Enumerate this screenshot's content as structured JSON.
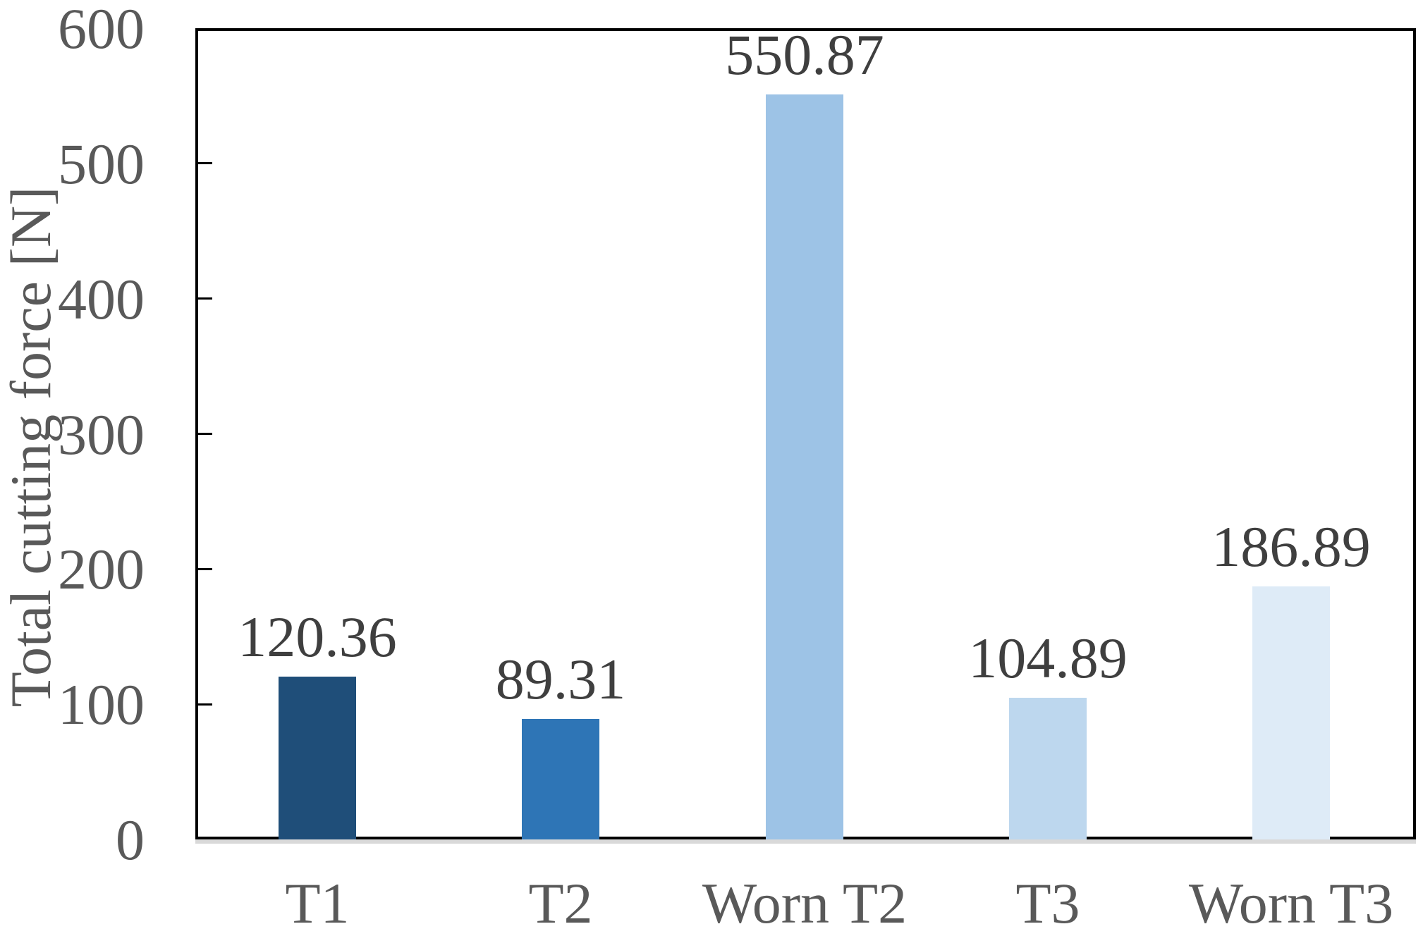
{
  "chart_data": {
    "type": "bar",
    "title": "",
    "xlabel": "",
    "ylabel": "Total cutting force [N]",
    "categories": [
      "T1",
      "T2",
      "Worn T2",
      "T3",
      "Worn T3"
    ],
    "values": [
      120.36,
      89.31,
      550.87,
      104.89,
      186.89
    ],
    "data_labels": [
      "120.36",
      "89.31",
      "550.87",
      "104.89",
      "186.89"
    ],
    "bar_colors": [
      "#1f4e79",
      "#2e75b6",
      "#9dc3e6",
      "#bdd7ee",
      "#deebf7"
    ],
    "ylim": [
      0,
      600
    ],
    "yticks": [
      0,
      100,
      200,
      300,
      400,
      500,
      600
    ],
    "ytick_labels": [
      "0",
      "100",
      "200",
      "300",
      "400",
      "500",
      "600"
    ],
    "grid": false,
    "legend": false,
    "colors": {
      "axis_text": "#595959",
      "value_label": "#3f3f3f",
      "axis_line": "#000000",
      "baseline_shadow": "#d9d9d9",
      "background": "#ffffff"
    }
  }
}
